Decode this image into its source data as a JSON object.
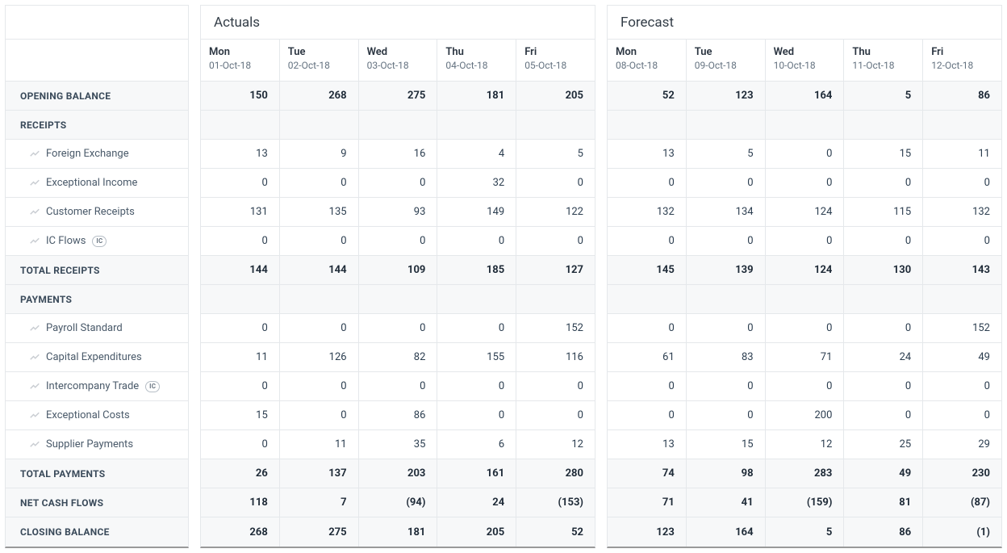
{
  "groups": [
    {
      "title": "Actuals",
      "days": [
        {
          "name": "Mon",
          "date": "01-Oct-18"
        },
        {
          "name": "Tue",
          "date": "02-Oct-18"
        },
        {
          "name": "Wed",
          "date": "03-Oct-18"
        },
        {
          "name": "Thu",
          "date": "04-Oct-18"
        },
        {
          "name": "Fri",
          "date": "05-Oct-18"
        }
      ]
    },
    {
      "title": "Forecast",
      "days": [
        {
          "name": "Mon",
          "date": "08-Oct-18"
        },
        {
          "name": "Tue",
          "date": "09-Oct-18"
        },
        {
          "name": "Wed",
          "date": "10-Oct-18"
        },
        {
          "name": "Thu",
          "date": "11-Oct-18"
        },
        {
          "name": "Fri",
          "date": "12-Oct-18"
        }
      ]
    }
  ],
  "rows": [
    {
      "label": "Opening Balance",
      "kind": "bold",
      "values": [
        [
          150,
          268,
          275,
          181,
          205
        ],
        [
          52,
          123,
          164,
          5,
          86
        ]
      ]
    },
    {
      "label": "Receipts",
      "kind": "section"
    },
    {
      "label": "Foreign Exchange",
      "kind": "item",
      "values": [
        [
          13,
          9,
          16,
          4,
          5
        ],
        [
          13,
          5,
          0,
          15,
          11
        ]
      ]
    },
    {
      "label": "Exceptional Income",
      "kind": "item",
      "values": [
        [
          0,
          0,
          0,
          32,
          0
        ],
        [
          0,
          0,
          0,
          0,
          0
        ]
      ]
    },
    {
      "label": "Customer Receipts",
      "kind": "item",
      "values": [
        [
          131,
          135,
          93,
          149,
          122
        ],
        [
          132,
          134,
          124,
          115,
          132
        ]
      ]
    },
    {
      "label": "IC Flows",
      "kind": "item",
      "badge": "IC",
      "values": [
        [
          0,
          0,
          0,
          0,
          0
        ],
        [
          0,
          0,
          0,
          0,
          0
        ]
      ]
    },
    {
      "label": "Total Receipts",
      "kind": "bold",
      "values": [
        [
          144,
          144,
          109,
          185,
          127
        ],
        [
          145,
          139,
          124,
          130,
          143
        ]
      ]
    },
    {
      "label": "Payments",
      "kind": "section"
    },
    {
      "label": "Payroll Standard",
      "kind": "item",
      "values": [
        [
          0,
          0,
          0,
          0,
          152
        ],
        [
          0,
          0,
          0,
          0,
          152
        ]
      ]
    },
    {
      "label": "Capital Expenditures",
      "kind": "item",
      "values": [
        [
          11,
          126,
          82,
          155,
          116
        ],
        [
          61,
          83,
          71,
          24,
          49
        ]
      ]
    },
    {
      "label": "Intercompany Trade",
      "kind": "item",
      "badge": "IC",
      "values": [
        [
          0,
          0,
          0,
          0,
          0
        ],
        [
          0,
          0,
          0,
          0,
          0
        ]
      ]
    },
    {
      "label": "Exceptional Costs",
      "kind": "item",
      "values": [
        [
          15,
          0,
          86,
          0,
          0
        ],
        [
          0,
          0,
          200,
          0,
          0
        ]
      ]
    },
    {
      "label": "Supplier Payments",
      "kind": "item",
      "values": [
        [
          0,
          11,
          35,
          6,
          12
        ],
        [
          13,
          15,
          12,
          25,
          29
        ]
      ]
    },
    {
      "label": "Total Payments",
      "kind": "bold",
      "values": [
        [
          26,
          137,
          203,
          161,
          280
        ],
        [
          74,
          98,
          283,
          49,
          230
        ]
      ]
    },
    {
      "label": "Net Cash Flows",
      "kind": "bold",
      "values": [
        [
          118,
          7,
          -94,
          24,
          -153
        ],
        [
          71,
          41,
          -159,
          81,
          -87
        ]
      ]
    },
    {
      "label": "Closing Balance",
      "kind": "bold",
      "values": [
        [
          268,
          275,
          181,
          205,
          52
        ],
        [
          123,
          164,
          5,
          86,
          -1
        ]
      ]
    }
  ],
  "styling": {
    "border_color": "#e5e8eb",
    "bold_row_bg": "#f7f8f9",
    "text_color": "#2c3e50",
    "muted_color": "#657381"
  }
}
